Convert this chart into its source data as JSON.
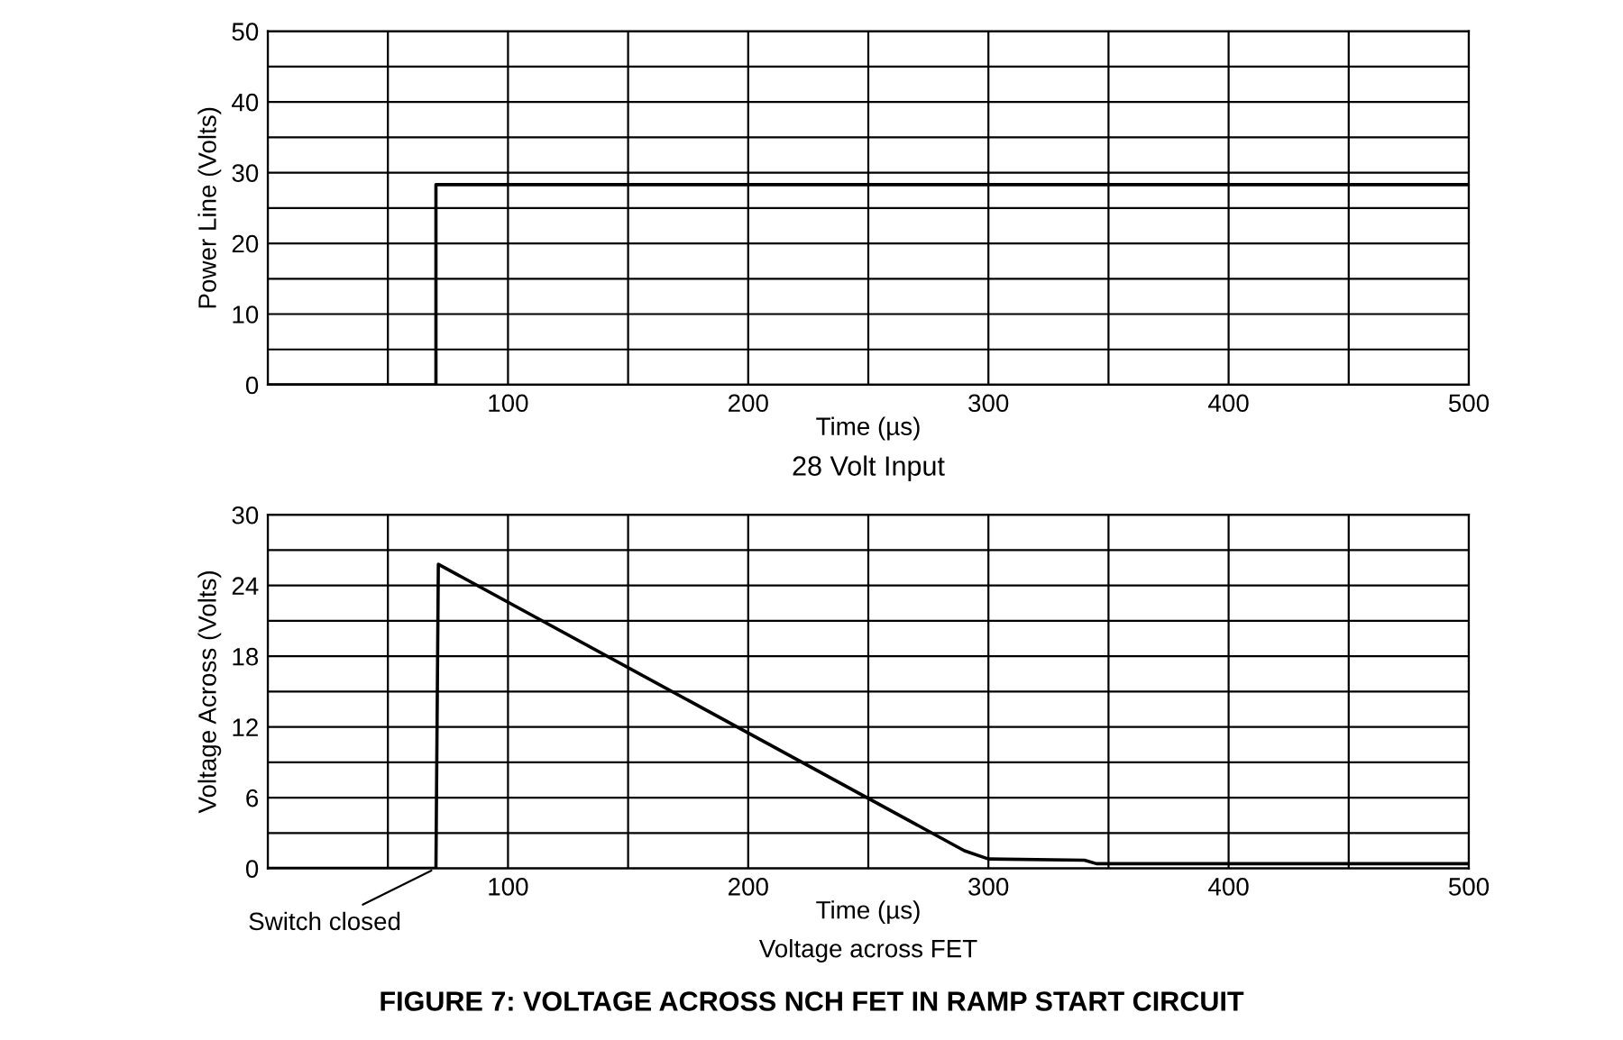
{
  "chart_data": [
    {
      "type": "line",
      "ylabel": "Power Line (Volts)",
      "xlabel": "Time (µs)",
      "annotations": [
        "28 Volt Input"
      ],
      "x": [
        0,
        70,
        70,
        500
      ],
      "series": [
        {
          "color": "#000000",
          "values": [
            0,
            0,
            28.3,
            28.3
          ]
        }
      ],
      "xlim": [
        0,
        500
      ],
      "xticks": [
        {
          "value": 0,
          "label": null
        },
        {
          "value": 50,
          "label": null
        },
        100,
        {
          "value": 150,
          "label": null
        },
        200,
        {
          "value": 250,
          "label": null
        },
        300,
        {
          "value": 350,
          "label": null
        },
        400,
        {
          "value": 450,
          "label": null
        },
        500
      ],
      "ylim": [
        0,
        50
      ],
      "yticks": [
        0,
        {
          "value": 5,
          "label": null
        },
        10,
        {
          "value": 15,
          "label": null
        },
        20,
        {
          "value": 25,
          "label": null
        },
        30,
        {
          "value": 35,
          "label": null
        },
        40,
        {
          "value": 45,
          "label": null
        },
        50
      ],
      "grid": true,
      "marker": "none",
      "line_style": "solid"
    },
    {
      "type": "line",
      "ylabel": "Voltage Across (Volts)",
      "xlabel": "Time (µs)",
      "annotations": [
        {
          "text": "Switch closed",
          "x": 70,
          "y": 0
        },
        "Voltage across FET",
        "FIGURE 7: VOLTAGE ACROSS NCH FET IN RAMP START CIRCUIT"
      ],
      "x": [
        0,
        70,
        71,
        290,
        300,
        340,
        345,
        500
      ],
      "series": [
        {
          "color": "#000000",
          "values": [
            0,
            0,
            25.8,
            1.5,
            0.8,
            0.7,
            0.4,
            0.4
          ]
        }
      ],
      "xlim": [
        0,
        500
      ],
      "xticks": [
        {
          "value": 0,
          "label": null
        },
        {
          "value": 50,
          "label": null
        },
        100,
        {
          "value": 150,
          "label": null
        },
        200,
        {
          "value": 250,
          "label": null
        },
        300,
        {
          "value": 350,
          "label": null
        },
        400,
        {
          "value": 450,
          "label": null
        },
        500
      ],
      "ylim": [
        0,
        30
      ],
      "yticks": [
        0,
        {
          "value": 3,
          "label": null
        },
        6,
        {
          "value": 9,
          "label": null
        },
        12,
        {
          "value": 15,
          "label": null
        },
        18,
        {
          "value": 21,
          "label": null
        },
        24,
        {
          "value": 27,
          "label": null
        },
        30
      ],
      "grid": true,
      "marker": "none",
      "line_style": "solid"
    }
  ]
}
